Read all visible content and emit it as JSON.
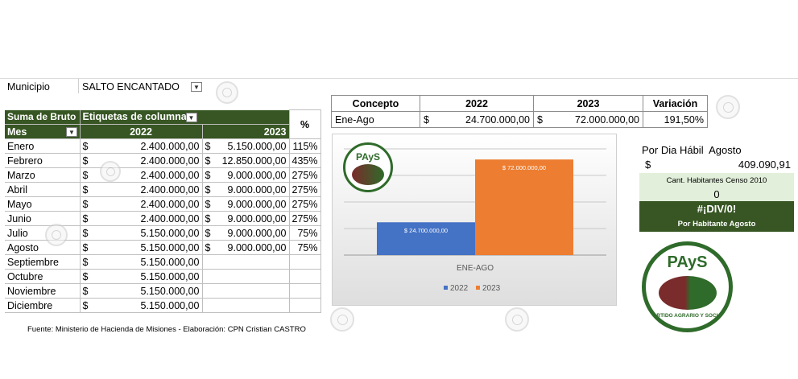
{
  "filter": {
    "label": "Municipio",
    "value": "SALTO ENCANTADO"
  },
  "pivot": {
    "values_label": "Suma de Bruto",
    "columns_label": "Etiquetas de columna",
    "row_label": "Mes",
    "year_a": "2022",
    "year_b": "2023",
    "pct_header": "%",
    "currency": "$",
    "rows": [
      {
        "mes": "Enero",
        "v2022": "2.400.000,00",
        "v2023": "5.150.000,00",
        "pct": "115%"
      },
      {
        "mes": "Febrero",
        "v2022": "2.400.000,00",
        "v2023": "12.850.000,00",
        "pct": "435%"
      },
      {
        "mes": "Marzo",
        "v2022": "2.400.000,00",
        "v2023": "9.000.000,00",
        "pct": "275%"
      },
      {
        "mes": "Abril",
        "v2022": "2.400.000,00",
        "v2023": "9.000.000,00",
        "pct": "275%"
      },
      {
        "mes": "Mayo",
        "v2022": "2.400.000,00",
        "v2023": "9.000.000,00",
        "pct": "275%"
      },
      {
        "mes": "Junio",
        "v2022": "2.400.000,00",
        "v2023": "9.000.000,00",
        "pct": "275%"
      },
      {
        "mes": "Julio",
        "v2022": "5.150.000,00",
        "v2023": "9.000.000,00",
        "pct": "75%"
      },
      {
        "mes": "Agosto",
        "v2022": "5.150.000,00",
        "v2023": "9.000.000,00",
        "pct": "75%"
      },
      {
        "mes": "Septiembre",
        "v2022": "5.150.000,00",
        "v2023": "",
        "pct": ""
      },
      {
        "mes": "Octubre",
        "v2022": "5.150.000,00",
        "v2023": "",
        "pct": ""
      },
      {
        "mes": "Noviembre",
        "v2022": "5.150.000,00",
        "v2023": "",
        "pct": ""
      },
      {
        "mes": "Diciembre",
        "v2022": "5.150.000,00",
        "v2023": "",
        "pct": ""
      }
    ],
    "source": "Fuente: Ministerio de Hacienda de Misiones - Elaboración: CPN Cristian CASTRO"
  },
  "summary": {
    "headers": [
      "Concepto",
      "2022",
      "2023",
      "Variación"
    ],
    "row": {
      "concepto": "Ene-Ago",
      "cur": "$",
      "v2022": "24.700.000,00",
      "v2023": "72.000.000,00",
      "variacion": "191,50%"
    }
  },
  "chart_data": {
    "type": "bar",
    "categories": [
      "ENE-AGO"
    ],
    "series": [
      {
        "name": "2022",
        "values": [
          24700000
        ],
        "label": "$ 24.700.000,00",
        "color": "#4472c4"
      },
      {
        "name": "2023",
        "values": [
          72000000
        ],
        "label": "$ 72.000.000,00",
        "color": "#ed7d31"
      }
    ],
    "ylim": [
      0,
      80000000
    ],
    "legend": "bottom",
    "title": ""
  },
  "side": {
    "dia_habil_label": "Por Dia Hábil",
    "month": "Agosto",
    "currency": "$",
    "dia_habil_value": "409.090,91",
    "censo_label": "Cant. Habitantes Censo 2010",
    "censo_value": "0",
    "div_error": "#¡DIV/0!",
    "habitante_label": "Por Habitante Agosto"
  },
  "logo": {
    "small_text": "PAyS",
    "big_text": "PAyS",
    "ring_text": "PARTIDO AGRARIO Y SOCIAL"
  },
  "colors": {
    "dark_green": "#375623",
    "light_green": "#e2efda",
    "bar2022": "#4472c4",
    "bar2023": "#ed7d31"
  }
}
